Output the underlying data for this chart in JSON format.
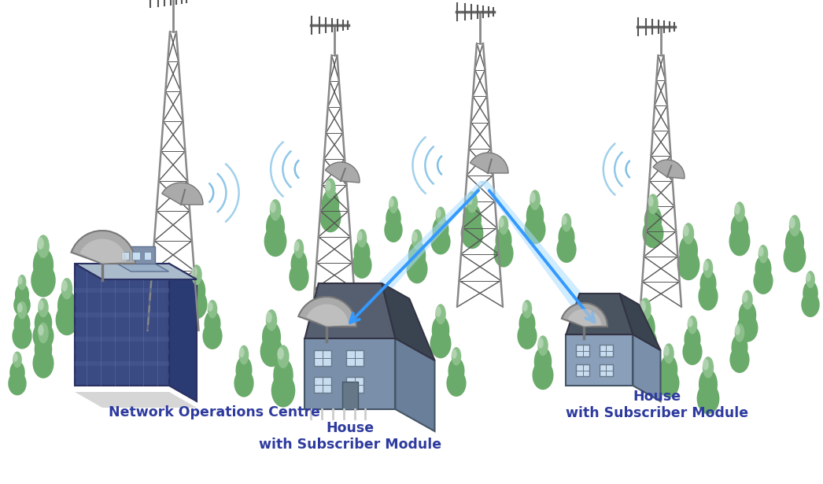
{
  "background_color": "#ffffff",
  "labels": {
    "noc": "Network Operations Centre",
    "house1": "House\nwith Subscriber Module",
    "house2": "House\nwith Subscriber Module"
  },
  "label_color": "#2E3B9E",
  "label_fontsize": 12.5,
  "arrow_color": "#3399FF",
  "beam_color": "#aaddff",
  "trees_color_light": "#8abf8a",
  "trees_color_mid": "#6aaa6a",
  "trees_color_dark": "#4d8c4d",
  "trunk_color": "#5a3a1a",
  "wave_color": "#55AADD",
  "tower_color": "#888888",
  "tower_dark": "#555555",
  "building_front": "#3a4a82",
  "building_side": "#2a3a72",
  "building_top": "#aabbcc",
  "building_stripe": "#4a5a92",
  "dish_color": "#aaaaaa",
  "dish_dark": "#777777",
  "house1_wall": "#7a8faa",
  "house1_side": "#6a7f9a",
  "house1_roof": "#555f6f",
  "house2_wall": "#8a9fba",
  "house2_side": "#7a8faa",
  "house2_roof": "#4a5460",
  "window_color": "#c8ddf0"
}
